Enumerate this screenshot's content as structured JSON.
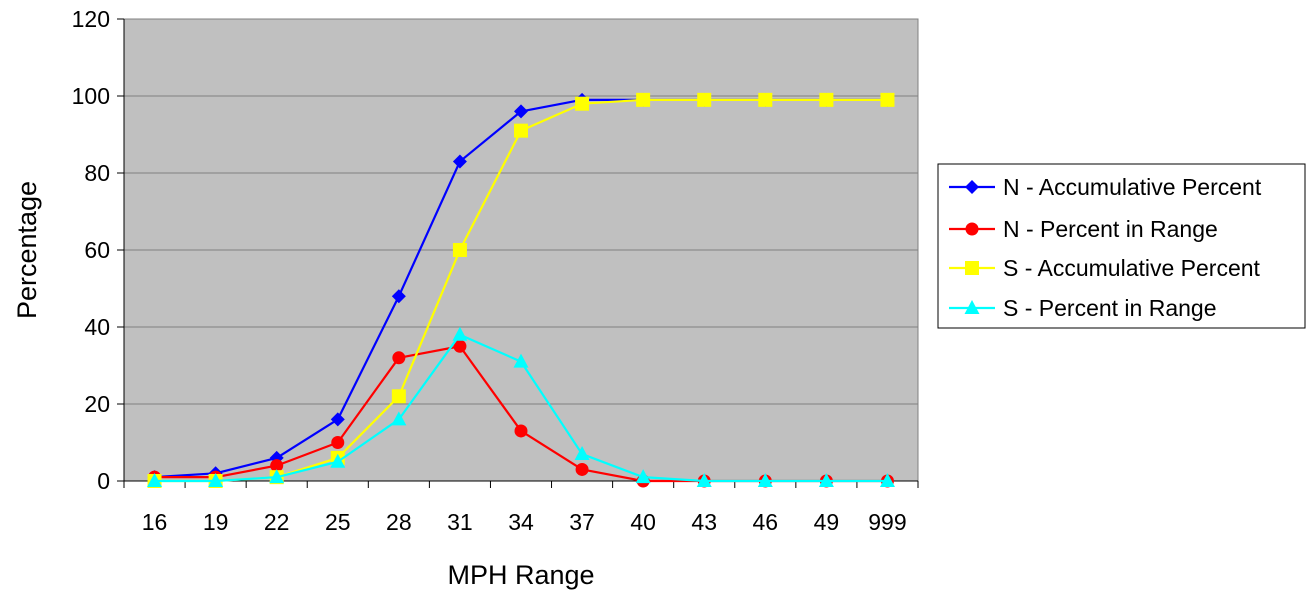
{
  "chart_data": {
    "type": "line",
    "title": "",
    "xlabel": "MPH Range",
    "ylabel": "Percentage",
    "categories": [
      "16",
      "19",
      "22",
      "25",
      "28",
      "31",
      "34",
      "37",
      "40",
      "43",
      "46",
      "49",
      "999"
    ],
    "ylim": [
      0,
      120
    ],
    "yticks": [
      "0",
      "20",
      "40",
      "60",
      "80",
      "100",
      "120"
    ],
    "grid": "horizontal",
    "legend_position": "right",
    "plot_background": "#c0c0c0",
    "series": [
      {
        "name": "N - Accumulative Percent",
        "color": "#0000ff",
        "marker": "diamond",
        "values": [
          1,
          2,
          6,
          16,
          48,
          83,
          96,
          99,
          99,
          99,
          99,
          99,
          99
        ]
      },
      {
        "name": "N - Percent in Range",
        "color": "#ff0000",
        "marker": "circle",
        "values": [
          1,
          1,
          4,
          10,
          32,
          35,
          13,
          3,
          0,
          0,
          0,
          0,
          0
        ]
      },
      {
        "name": "S - Accumulative Percent",
        "color": "#ffff00",
        "marker": "square",
        "values": [
          0,
          0,
          1,
          6,
          22,
          60,
          91,
          98,
          99,
          99,
          99,
          99,
          99
        ]
      },
      {
        "name": "S - Percent in Range",
        "color": "#00ffff",
        "marker": "triangle",
        "values": [
          0,
          0,
          1,
          5,
          16,
          38,
          31,
          7,
          1,
          0,
          0,
          0,
          0
        ]
      }
    ]
  }
}
